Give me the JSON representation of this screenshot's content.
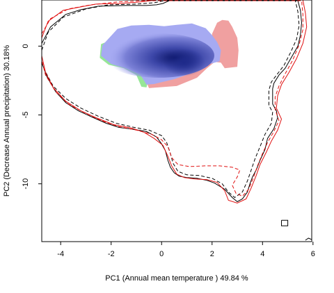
{
  "chart_data": {
    "type": "area",
    "title": "",
    "xlabel": "PC1 (Annual mean temperature ) 49.84 %",
    "ylabel": "PC2 (Decrease Annual precipitation) 30.18%",
    "xlim": [
      -4.75,
      5.95
    ],
    "ylim": [
      -14.2,
      3.35
    ],
    "xticks": [
      "-4",
      "-2",
      "0",
      "2",
      "4",
      "6"
    ],
    "xtick_values": [
      -4,
      -2,
      0,
      2,
      4,
      6
    ],
    "yticks": [
      "0",
      "-5",
      "-10"
    ],
    "ytick_values": [
      0,
      -5,
      -10
    ],
    "grid": false,
    "colors": {
      "density": "#1e2a8a",
      "niche_a_only": "#96e696",
      "niche_b_only": "#f0a0a0",
      "overlap": "#a6aaf2",
      "env_a": "#000000",
      "env_b": "#e01010"
    },
    "series": [
      {
        "style": "filled",
        "color": "#f0a0a0",
        "points": [
          [
            2.4,
            1.9
          ],
          [
            2.65,
            1.85
          ],
          [
            2.8,
            1.4
          ],
          [
            3.0,
            0.6
          ],
          [
            3.05,
            -0.3
          ],
          [
            3.0,
            -1.5
          ],
          [
            2.5,
            -1.6
          ],
          [
            2.35,
            -1.2
          ],
          [
            2.1,
            -1.15
          ],
          [
            1.8,
            -1.6
          ],
          [
            1.4,
            -2.3
          ],
          [
            0.6,
            -2.9
          ],
          [
            -0.5,
            -3.05
          ],
          [
            -0.65,
            -2.4
          ],
          [
            -0.4,
            -1.9
          ],
          [
            1.5,
            -1.3
          ],
          [
            2.0,
            -0.4
          ],
          [
            2.0,
            0.9
          ],
          [
            2.2,
            1.7
          ]
        ]
      },
      {
        "style": "filled",
        "color": "#96e696",
        "points": [
          [
            -2.05,
            0.4
          ],
          [
            -2.4,
            0.15
          ],
          [
            -2.45,
            -0.85
          ],
          [
            -2.1,
            -1.35
          ],
          [
            -1.5,
            -1.6
          ],
          [
            -1.0,
            -2.1
          ],
          [
            -0.8,
            -2.95
          ],
          [
            -0.6,
            -3.0
          ],
          [
            -0.5,
            -2.3
          ],
          [
            -1.3,
            -1.7
          ],
          [
            -2.0,
            -1.1
          ],
          [
            -2.05,
            0.4
          ]
        ]
      },
      {
        "style": "filled",
        "color": "#a6aaf2",
        "points": [
          [
            -2.1,
            0.55
          ],
          [
            -1.75,
            1.25
          ],
          [
            -1.2,
            1.5
          ],
          [
            -0.5,
            1.55
          ],
          [
            0.1,
            1.45
          ],
          [
            0.6,
            1.55
          ],
          [
            1.2,
            1.65
          ],
          [
            1.75,
            1.3
          ],
          [
            2.0,
            0.8
          ],
          [
            2.2,
            0.3
          ],
          [
            2.35,
            -0.3
          ],
          [
            2.3,
            -1.1
          ],
          [
            1.7,
            -1.4
          ],
          [
            1.2,
            -1.95
          ],
          [
            0.5,
            -2.4
          ],
          [
            -0.3,
            -2.75
          ],
          [
            -0.6,
            -2.8
          ],
          [
            -0.85,
            -2.05
          ],
          [
            -1.4,
            -1.6
          ],
          [
            -2.0,
            -1.3
          ],
          [
            -2.4,
            -0.7
          ],
          [
            -2.35,
            0.05
          ]
        ]
      },
      {
        "style": "solid",
        "color": "#000000",
        "points": [
          [
            -4.75,
            0.2
          ],
          [
            -4.4,
            1.4
          ],
          [
            -3.8,
            2.3
          ],
          [
            -3.2,
            2.65
          ],
          [
            -2.5,
            2.9
          ],
          [
            -1.4,
            2.95
          ],
          [
            -0.6,
            2.95
          ],
          [
            -0.2,
            3.0
          ],
          [
            0.05,
            3.1
          ],
          [
            0.3,
            3.3
          ],
          [
            5.4,
            3.3
          ],
          [
            5.5,
            2.6
          ],
          [
            5.55,
            1.7
          ],
          [
            5.5,
            0.8
          ],
          [
            5.4,
            0.0
          ],
          [
            5.15,
            -0.8
          ],
          [
            4.9,
            -1.6
          ],
          [
            4.65,
            -2.1
          ],
          [
            4.45,
            -2.7
          ],
          [
            4.4,
            -3.1
          ],
          [
            4.4,
            -4.2
          ],
          [
            4.55,
            -4.7
          ],
          [
            4.6,
            -5.2
          ],
          [
            4.45,
            -6.0
          ],
          [
            4.2,
            -6.7
          ],
          [
            4.1,
            -7.5
          ],
          [
            3.9,
            -8.3
          ],
          [
            3.75,
            -9.0
          ],
          [
            3.6,
            -9.5
          ],
          [
            3.5,
            -10.0
          ],
          [
            3.4,
            -10.6
          ],
          [
            3.2,
            -11.1
          ],
          [
            3.0,
            -11.3
          ],
          [
            2.8,
            -11.0
          ],
          [
            2.5,
            -10.4
          ],
          [
            2.1,
            -9.95
          ],
          [
            1.8,
            -9.75
          ],
          [
            1.4,
            -9.6
          ],
          [
            1.0,
            -9.55
          ],
          [
            0.7,
            -9.45
          ],
          [
            0.5,
            -9.2
          ],
          [
            0.35,
            -8.8
          ],
          [
            0.25,
            -8.3
          ],
          [
            0.15,
            -7.6
          ],
          [
            0.0,
            -7.1
          ],
          [
            -0.2,
            -6.6
          ],
          [
            -0.6,
            -6.2
          ],
          [
            -1.1,
            -6.05
          ],
          [
            -1.7,
            -5.9
          ],
          [
            -2.2,
            -5.6
          ],
          [
            -2.7,
            -5.2
          ],
          [
            -3.3,
            -4.7
          ],
          [
            -3.8,
            -4.1
          ],
          [
            -4.2,
            -3.3
          ],
          [
            -4.55,
            -2.2
          ],
          [
            -4.75,
            -1.2
          ]
        ]
      },
      {
        "style": "dashed",
        "color": "#000000",
        "points": [
          [
            -4.75,
            -0.3
          ],
          [
            -4.5,
            1.0
          ],
          [
            -3.9,
            2.1
          ],
          [
            -3.0,
            2.7
          ],
          [
            -2.1,
            3.0
          ],
          [
            -1.0,
            3.05
          ],
          [
            -0.3,
            3.15
          ],
          [
            0.1,
            3.3
          ],
          [
            5.3,
            3.3
          ],
          [
            5.4,
            2.5
          ],
          [
            5.45,
            1.5
          ],
          [
            5.35,
            0.5
          ],
          [
            5.1,
            -0.5
          ],
          [
            4.85,
            -1.4
          ],
          [
            4.6,
            -2.0
          ],
          [
            4.35,
            -2.6
          ],
          [
            4.25,
            -3.2
          ],
          [
            4.25,
            -4.3
          ],
          [
            4.4,
            -4.8
          ],
          [
            4.35,
            -5.6
          ],
          [
            4.1,
            -6.4
          ],
          [
            3.9,
            -7.3
          ],
          [
            3.7,
            -8.2
          ],
          [
            3.55,
            -9.0
          ],
          [
            3.4,
            -9.8
          ],
          [
            3.2,
            -10.6
          ],
          [
            2.9,
            -11.0
          ],
          [
            2.65,
            -10.6
          ],
          [
            2.4,
            -10.0
          ],
          [
            2.0,
            -9.6
          ],
          [
            1.5,
            -9.4
          ],
          [
            1.0,
            -9.35
          ],
          [
            0.65,
            -9.1
          ],
          [
            0.45,
            -8.5
          ],
          [
            0.35,
            -7.8
          ],
          [
            0.2,
            -7.0
          ],
          [
            0.0,
            -6.5
          ],
          [
            -0.5,
            -6.1
          ],
          [
            -1.1,
            -5.9
          ],
          [
            -1.8,
            -5.6
          ],
          [
            -2.5,
            -5.1
          ],
          [
            -3.2,
            -4.5
          ],
          [
            -3.8,
            -3.8
          ],
          [
            -4.3,
            -2.9
          ],
          [
            -4.65,
            -1.7
          ]
        ]
      },
      {
        "style": "solid",
        "color": "#e01010",
        "points": [
          [
            -4.75,
            0.6
          ],
          [
            -4.5,
            1.8
          ],
          [
            -3.9,
            2.6
          ],
          [
            -3.2,
            2.85
          ],
          [
            -2.6,
            3.05
          ],
          [
            -1.7,
            3.1
          ],
          [
            -0.9,
            3.2
          ],
          [
            -0.2,
            3.35
          ],
          [
            5.6,
            3.35
          ],
          [
            5.7,
            2.4
          ],
          [
            5.75,
            1.4
          ],
          [
            5.6,
            0.2
          ],
          [
            5.35,
            -0.9
          ],
          [
            5.05,
            -1.9
          ],
          [
            4.75,
            -2.8
          ],
          [
            4.6,
            -3.6
          ],
          [
            4.55,
            -4.5
          ],
          [
            4.75,
            -5.3
          ],
          [
            4.6,
            -6.1
          ],
          [
            4.35,
            -6.9
          ],
          [
            4.15,
            -7.7
          ],
          [
            3.9,
            -8.6
          ],
          [
            3.75,
            -9.4
          ],
          [
            3.55,
            -10.3
          ],
          [
            3.35,
            -11.1
          ],
          [
            3.0,
            -11.4
          ],
          [
            2.65,
            -11.2
          ],
          [
            2.5,
            -10.5
          ],
          [
            2.2,
            -9.9
          ],
          [
            1.8,
            -9.7
          ],
          [
            1.3,
            -9.65
          ],
          [
            0.9,
            -9.55
          ],
          [
            0.6,
            -9.3
          ],
          [
            0.4,
            -8.7
          ],
          [
            0.25,
            -8.0
          ],
          [
            0.05,
            -7.2
          ],
          [
            -0.3,
            -6.7
          ],
          [
            -0.7,
            -6.25
          ],
          [
            -1.2,
            -5.95
          ],
          [
            -1.9,
            -5.7
          ],
          [
            -2.6,
            -5.2
          ],
          [
            -3.2,
            -4.7
          ],
          [
            -3.8,
            -4.0
          ],
          [
            -4.3,
            -3.0
          ],
          [
            -4.6,
            -1.9
          ],
          [
            -4.75,
            -0.7
          ]
        ]
      },
      {
        "style": "dashed",
        "color": "#e01010",
        "points": [
          [
            -4.75,
            0.9
          ],
          [
            -4.4,
            2.0
          ],
          [
            -3.7,
            2.7
          ],
          [
            -2.8,
            3.0
          ],
          [
            -1.8,
            3.2
          ],
          [
            -0.8,
            3.3
          ],
          [
            5.55,
            3.3
          ],
          [
            5.6,
            2.3
          ],
          [
            5.6,
            1.2
          ],
          [
            5.45,
            0.1
          ],
          [
            5.2,
            -1.0
          ],
          [
            4.9,
            -2.0
          ],
          [
            4.65,
            -2.9
          ],
          [
            4.5,
            -3.7
          ],
          [
            4.5,
            -4.6
          ],
          [
            4.65,
            -5.4
          ],
          [
            4.45,
            -6.2
          ],
          [
            4.2,
            -7.0
          ],
          [
            4.0,
            -7.8
          ],
          [
            3.8,
            -8.7
          ],
          [
            3.65,
            -9.5
          ],
          [
            3.45,
            -10.4
          ],
          [
            3.2,
            -10.9
          ],
          [
            2.95,
            -10.7
          ],
          [
            2.8,
            -10.1
          ],
          [
            3.0,
            -9.5
          ],
          [
            3.1,
            -9.0
          ],
          [
            2.8,
            -8.8
          ],
          [
            2.3,
            -8.7
          ],
          [
            1.7,
            -8.7
          ],
          [
            1.1,
            -8.75
          ],
          [
            0.65,
            -8.6
          ],
          [
            0.4,
            -8.1
          ],
          [
            0.25,
            -7.3
          ],
          [
            0.0,
            -6.8
          ],
          [
            -0.4,
            -6.4
          ],
          [
            -1.0,
            -6.1
          ],
          [
            -1.7,
            -5.85
          ],
          [
            -2.4,
            -5.4
          ],
          [
            -3.1,
            -4.8
          ],
          [
            -3.7,
            -4.2
          ],
          [
            -4.2,
            -3.3
          ],
          [
            -4.6,
            -2.1
          ],
          [
            -4.75,
            -1.0
          ]
        ]
      },
      {
        "style": "solid",
        "color": "#000000",
        "points": [
          [
            4.75,
            -12.65
          ],
          [
            5.0,
            -12.65
          ],
          [
            5.0,
            -13.05
          ],
          [
            4.75,
            -13.05
          ],
          [
            4.75,
            -12.65
          ]
        ]
      },
      {
        "style": "solid",
        "color": "#000000",
        "points": [
          [
            5.7,
            -14.1
          ],
          [
            5.82,
            -13.95
          ],
          [
            5.95,
            -14.05
          ]
        ]
      }
    ]
  }
}
